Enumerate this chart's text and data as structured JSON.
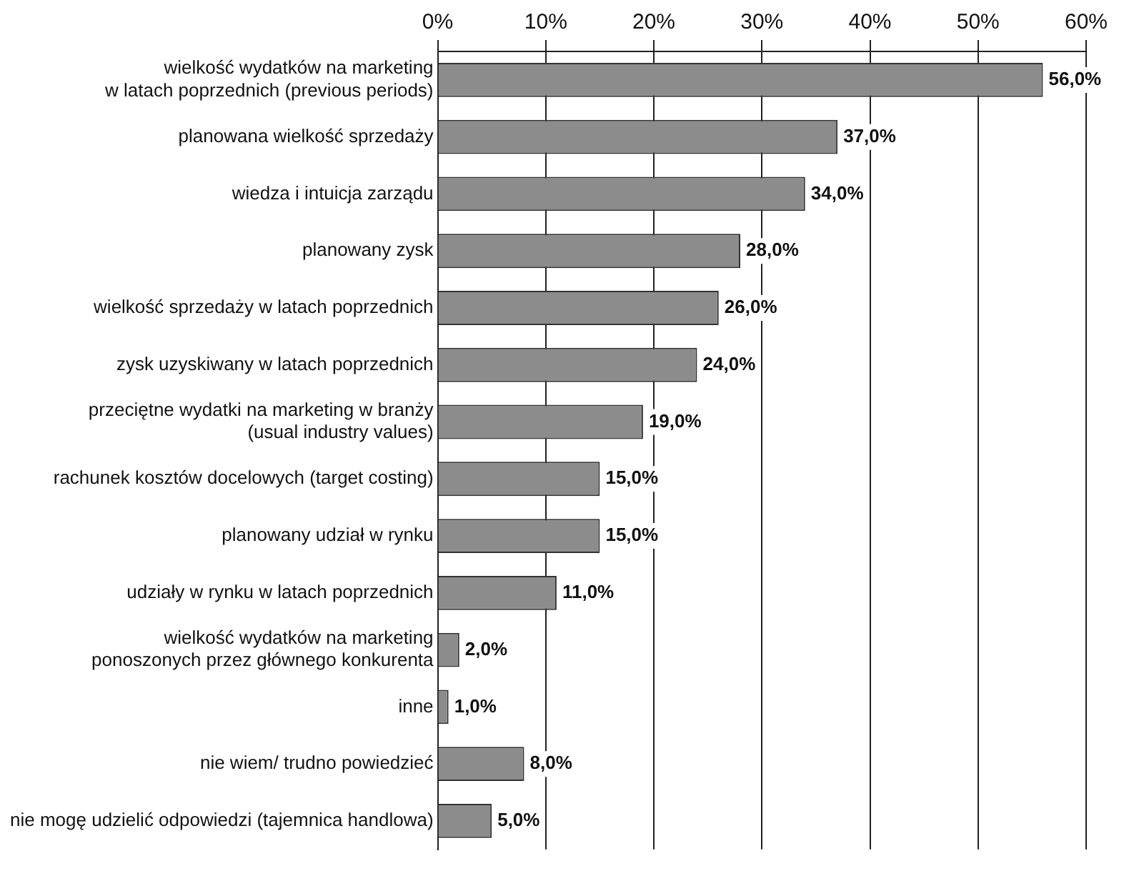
{
  "chart_data": {
    "type": "bar",
    "orientation": "horizontal",
    "categories": [
      "wielkość wydatków na marketing\nw latach poprzednich (previous periods)",
      "planowana wielkość sprzedaży",
      "wiedza i intuicja zarządu",
      "planowany zysk",
      "wielkość sprzedaży w latach poprzednich",
      "zysk uzyskiwany w latach poprzednich",
      "przeciętne wydatki na marketing w branży\n(usual industry values)",
      "rachunek kosztów docelowych (target costing)",
      "planowany udział w rynku",
      "udziały w rynku w latach poprzednich",
      "wielkość wydatków na marketing\nponoszonych przez głównego konkurenta",
      "inne",
      "nie wiem/ trudno powiedzieć",
      "nie mogę udzielić odpowiedzi (tajemnica handlowa)"
    ],
    "values": [
      56,
      37,
      34,
      28,
      26,
      24,
      19,
      15,
      15,
      11,
      2,
      1,
      8,
      5
    ],
    "value_labels": [
      "56,0%",
      "37,0%",
      "34,0%",
      "28,0%",
      "26,0%",
      "24,0%",
      "19,0%",
      "15,0%",
      "15,0%",
      "11,0%",
      "2,0%",
      "1,0%",
      "8,0%",
      "5,0%"
    ],
    "color": "#8c8c8c",
    "xlim": [
      0,
      60
    ],
    "xticks": [
      {
        "value": 0,
        "label": "0%"
      },
      {
        "value": 10,
        "label": "10%"
      },
      {
        "value": 20,
        "label": "20%"
      },
      {
        "value": 30,
        "label": "30%"
      },
      {
        "value": 40,
        "label": "40%"
      },
      {
        "value": 50,
        "label": "50%"
      },
      {
        "value": 60,
        "label": "60%"
      }
    ],
    "grid": "x",
    "legend": false
  }
}
